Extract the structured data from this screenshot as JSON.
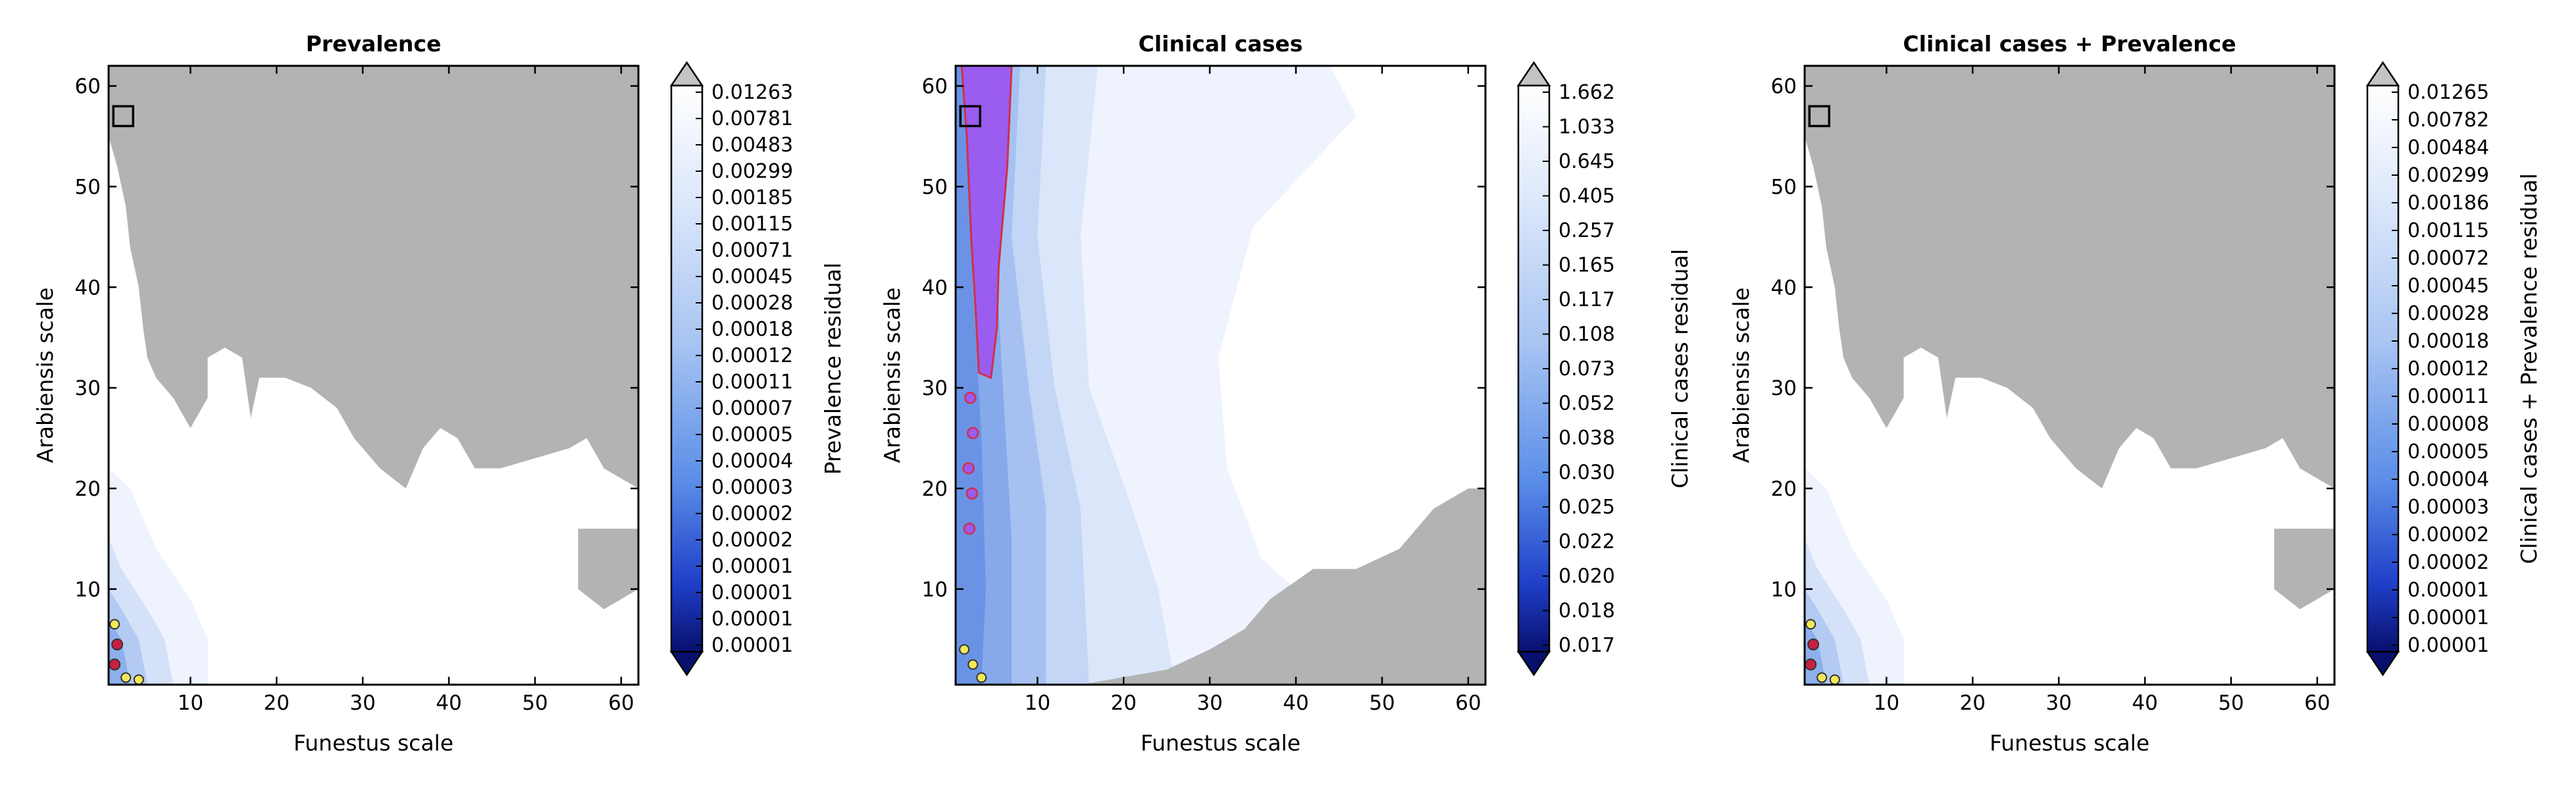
{
  "chart_data": [
    {
      "type": "heatmap",
      "title": "Prevalence",
      "xlabel": "Funestus scale",
      "ylabel": "Arabiensis scale",
      "xlim": [
        0.5,
        62
      ],
      "ylim": [
        0.5,
        62
      ],
      "xticks": [
        10,
        20,
        30,
        40,
        50,
        60
      ],
      "yticks": [
        10,
        20,
        30,
        40,
        50,
        60
      ],
      "colorbar": {
        "label": "Prevalence residual",
        "ticks": [
          "0.01263",
          "0.00781",
          "0.00483",
          "0.00299",
          "0.00185",
          "0.00115",
          "0.00071",
          "0.00045",
          "0.00028",
          "0.00018",
          "0.00012",
          "0.00011",
          "0.00007",
          "0.00005",
          "0.00004",
          "0.00003",
          "0.00002",
          "0.00002",
          "0.00001",
          "0.00001",
          "0.00001",
          "0.00001"
        ],
        "extend": "both",
        "colormap": "Blues_r"
      },
      "marker": {
        "x": 2.2,
        "y": 57,
        "shape": "square"
      },
      "out_of_range_color": "#b3b3b3"
    },
    {
      "type": "heatmap",
      "title": "Clinical cases",
      "xlabel": "Funestus scale",
      "ylabel": "Arabiensis scale",
      "xlim": [
        0.5,
        62
      ],
      "ylim": [
        0.5,
        62
      ],
      "xticks": [
        10,
        20,
        30,
        40,
        50,
        60
      ],
      "yticks": [
        10,
        20,
        30,
        40,
        50,
        60
      ],
      "colorbar": {
        "label": "Clinical cases residual",
        "ticks": [
          "1.662",
          "1.033",
          "0.645",
          "0.405",
          "0.257",
          "0.165",
          "0.117",
          "0.108",
          "0.073",
          "0.052",
          "0.038",
          "0.030",
          "0.025",
          "0.022",
          "0.020",
          "0.018",
          "0.017"
        ],
        "extend": "both",
        "colormap": "Blues_r"
      },
      "marker": {
        "x": 2.2,
        "y": 57,
        "shape": "square"
      },
      "highlight_color": "#9b5cf0",
      "out_of_range_color": "#b3b3b3"
    },
    {
      "type": "heatmap",
      "title": "Clinical cases + Prevalence",
      "xlabel": "Funestus scale",
      "ylabel": "Arabiensis scale",
      "xlim": [
        0.5,
        62
      ],
      "ylim": [
        0.5,
        62
      ],
      "xticks": [
        10,
        20,
        30,
        40,
        50,
        60
      ],
      "yticks": [
        10,
        20,
        30,
        40,
        50,
        60
      ],
      "colorbar": {
        "label": "Clinical cases + Prevalence residual",
        "ticks": [
          "0.01265",
          "0.00782",
          "0.00484",
          "0.00299",
          "0.00186",
          "0.00115",
          "0.00072",
          "0.00045",
          "0.00028",
          "0.00018",
          "0.00012",
          "0.00011",
          "0.00008",
          "0.00005",
          "0.00004",
          "0.00003",
          "0.00002",
          "0.00002",
          "0.00001",
          "0.00001",
          "0.00001"
        ],
        "extend": "both",
        "colormap": "Blues_r"
      },
      "marker": {
        "x": 2.2,
        "y": 57,
        "shape": "square"
      },
      "out_of_range_color": "#b3b3b3"
    }
  ]
}
